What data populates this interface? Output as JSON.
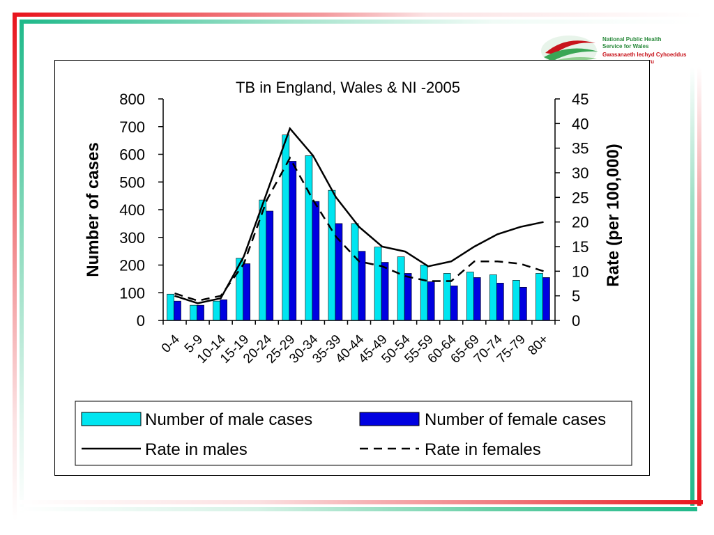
{
  "logo": {
    "line1": "National Public Health",
    "line2": "Service for Wales",
    "line3": "Gwasanaeth Iechyd Cyhoeddus",
    "line4": "ru"
  },
  "colors": {
    "male_bar": "#00e5f0",
    "female_bar": "#0000e0",
    "frame_red": "#e8141c",
    "frame_green": "#1fb98a"
  },
  "chart_data": {
    "type": "bar",
    "title": "TB in England, Wales & NI -2005",
    "ylabel": "Number of cases",
    "y2label": "Rate (per 100,000)",
    "ylim": [
      0,
      800
    ],
    "y2lim": [
      0,
      45
    ],
    "yticks": [
      0,
      100,
      200,
      300,
      400,
      500,
      600,
      700,
      800
    ],
    "y2ticks": [
      0,
      5,
      10,
      15,
      20,
      25,
      30,
      35,
      40,
      45
    ],
    "categories": [
      "0-4",
      "5-9",
      "10-14",
      "15-19",
      "20-24",
      "25-29",
      "30-34",
      "35-39",
      "40-44",
      "45-49",
      "50-54",
      "55-59",
      "60-64",
      "65-69",
      "70-74",
      "75-79",
      "80+"
    ],
    "series": [
      {
        "name": "Number of male cases",
        "kind": "bar",
        "axis": "left",
        "color": "#00e5f0",
        "values": [
          95,
          55,
          70,
          225,
          435,
          670,
          595,
          470,
          350,
          265,
          230,
          200,
          170,
          175,
          165,
          145,
          170
        ]
      },
      {
        "name": "Number of female cases",
        "kind": "bar",
        "axis": "left",
        "color": "#0000e0",
        "values": [
          70,
          55,
          75,
          205,
          395,
          575,
          430,
          350,
          250,
          210,
          170,
          140,
          125,
          155,
          135,
          120,
          155
        ]
      },
      {
        "name": "Rate in males",
        "kind": "line",
        "axis": "right",
        "style": "solid",
        "values": [
          5,
          3.5,
          4.5,
          13,
          26,
          39,
          33.5,
          25,
          19,
          15,
          14,
          11,
          12,
          15,
          17.5,
          19,
          20
        ]
      },
      {
        "name": "Rate in females",
        "kind": "line",
        "axis": "right",
        "style": "dashed",
        "values": [
          5.5,
          4,
          5,
          11.5,
          24.5,
          33,
          24.5,
          17,
          12,
          11,
          9,
          8,
          8,
          12,
          12,
          11.5,
          10
        ]
      }
    ],
    "legend_position": "bottom",
    "grid": false
  }
}
